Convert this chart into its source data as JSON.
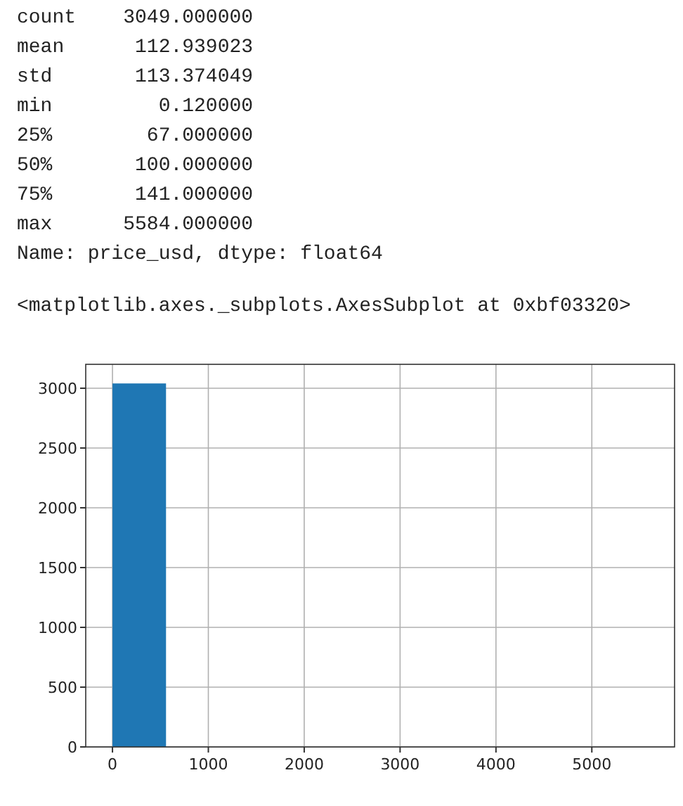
{
  "chart_data": {
    "type": "histogram",
    "annotations": [
      "count    3049.000000",
      "mean      112.939023",
      "std       113.374049",
      "min         0.120000",
      "25%        67.000000",
      "50%       100.000000",
      "75%       141.000000",
      "max      5584.000000",
      "Name: price_usd, dtype: float64",
      "<matplotlib.axes._subplots.AxesSubplot at 0xbf03320>"
    ],
    "bins": [
      0.12,
      558.508,
      1116.896,
      1675.284,
      2233.672,
      2792.06,
      3350.448,
      3908.836,
      4467.224,
      5025.612,
      5584
    ],
    "values": [
      3040,
      0,
      0,
      0,
      0,
      0,
      0,
      0,
      0,
      0
    ],
    "color": "#1f77b4",
    "xlim": [
      -279,
      5863
    ],
    "xticks": [
      0,
      1000,
      2000,
      3000,
      4000,
      5000
    ],
    "ylim": [
      0,
      3200
    ],
    "yticks": [
      0,
      500,
      1000,
      1500,
      2000,
      2500,
      3000
    ],
    "grid": true
  }
}
